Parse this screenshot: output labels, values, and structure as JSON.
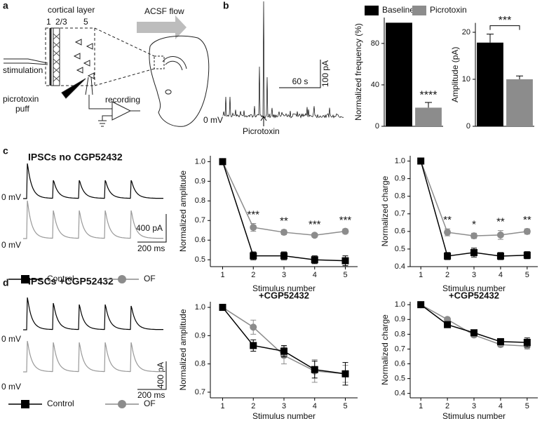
{
  "figure": {
    "panel_labels": [
      "a",
      "b",
      "c",
      "d"
    ],
    "a": {
      "cortical_layer": "cortical layer",
      "layers": [
        "1",
        "2/3",
        "5"
      ],
      "flow": "ACSF flow",
      "stimulation": "stimulation",
      "puff": [
        "picrotoxin",
        "puff"
      ],
      "recording": "recording"
    },
    "b": {
      "zero": "0 mV",
      "drug": "Picrotoxin",
      "scale_x": "60 s",
      "scale_y": "100 pA"
    },
    "c": {
      "title": "IPSCs no CGP52432",
      "zero": [
        "0 mV",
        "0 mV"
      ],
      "scale_y": "400 pA",
      "scale_x": "200 ms"
    },
    "d": {
      "title": "IPSCs +CGP52432",
      "zero": [
        "0 mV",
        "0 mV"
      ],
      "scale_y": "400 pA",
      "scale_x": "200 ms"
    }
  },
  "chart_data": [
    {
      "type": "bar",
      "y_label": "Normalized frequency (%)",
      "series": [
        {
          "name": "Baseline",
          "color": "#000000",
          "values": [
            100
          ]
        },
        {
          "name": "Picrotoxin",
          "color": "#8c8c8c",
          "values": [
            18
          ],
          "errors": [
            5
          ]
        }
      ],
      "ylim": [
        0,
        105
      ],
      "yticks": [
        0,
        40,
        80
      ],
      "significance": "****"
    },
    {
      "type": "bar",
      "y_label": "Amplitude (pA)",
      "series": [
        {
          "color": "#000000",
          "values": [
            17.8
          ],
          "errors": [
            1.8
          ]
        },
        {
          "color": "#8c8c8c",
          "values": [
            10
          ],
          "errors": [
            0.7
          ]
        }
      ],
      "ylim": [
        0,
        22
      ],
      "yticks": [
        0,
        10,
        20
      ],
      "significance": "***"
    },
    {
      "type": "line",
      "y_label": "Normalized amplitude",
      "x_label": "Stimulus number",
      "x": [
        1,
        2,
        3,
        4,
        5
      ],
      "xlim": [
        0.6,
        5.4
      ],
      "xticks": [
        1,
        2,
        3,
        4,
        5
      ],
      "ylim": [
        0.465,
        1.03
      ],
      "yticks": [
        0.5,
        0.6,
        0.7,
        0.8,
        0.9,
        {
          "value": 1,
          "label": "1.0"
        }
      ],
      "series": [
        {
          "name": "Control",
          "color": "#000000",
          "marker": "square",
          "values": [
            1,
            0.52,
            0.52,
            0.5,
            0.495
          ],
          "errors": [
            0,
            0.02,
            0.02,
            0.02,
            0.025
          ]
        },
        {
          "name": "OF",
          "color": "#8c8c8c",
          "marker": "circle",
          "values": [
            1,
            0.665,
            0.64,
            0.625,
            0.645
          ],
          "errors": [
            0,
            0.02,
            0.012,
            0.01,
            0.012
          ]
        }
      ],
      "significance": [
        null,
        "***",
        "**",
        "***",
        "***"
      ]
    },
    {
      "type": "line",
      "y_label": "Normalized charge",
      "x_label": "Stimulus number",
      "x": [
        1,
        2,
        3,
        4,
        5
      ],
      "xlim": [
        0.6,
        5.4
      ],
      "xticks": [
        1,
        2,
        3,
        4,
        5
      ],
      "ylim": [
        0.4,
        1.03
      ],
      "yticks": [
        0.4,
        0.5,
        0.6,
        0.7,
        0.8,
        0.9,
        {
          "value": 1,
          "label": "1.0"
        }
      ],
      "series": [
        {
          "color": "#000000",
          "marker": "square",
          "values": [
            1,
            0.46,
            0.48,
            0.46,
            0.465
          ],
          "errors": [
            0,
            0.02,
            0.025,
            0.02,
            0.02
          ]
        },
        {
          "color": "#8c8c8c",
          "marker": "circle",
          "values": [
            1,
            0.595,
            0.575,
            0.58,
            0.6
          ],
          "errors": [
            0,
            0.02,
            0.015,
            0.025,
            0.015
          ]
        }
      ],
      "significance": [
        null,
        "**",
        "*",
        "**",
        "**"
      ]
    },
    {
      "type": "line",
      "title": "+CGP52432",
      "y_label": "Normalized amplitude",
      "x_label": "Stimulus number",
      "x": [
        1,
        2,
        3,
        4,
        5
      ],
      "xlim": [
        0.6,
        5.4
      ],
      "xticks": [
        1,
        2,
        3,
        4,
        5
      ],
      "ylim": [
        0.68,
        1.02
      ],
      "yticks": [
        0.7,
        0.8,
        0.9,
        {
          "value": 1,
          "label": "1.0"
        }
      ],
      "series": [
        {
          "name": "Control",
          "color": "#000000",
          "marker": "square",
          "values": [
            1,
            0.865,
            0.845,
            0.78,
            0.765
          ],
          "errors": [
            0,
            0.02,
            0.02,
            0.03,
            0.04
          ]
        },
        {
          "name": "OF",
          "color": "#8c8c8c",
          "marker": "circle",
          "values": [
            1,
            0.93,
            0.83,
            0.775,
            0.765
          ],
          "errors": [
            0,
            0.025,
            0.03,
            0.04,
            0.03
          ]
        }
      ]
    },
    {
      "type": "line",
      "title": "+CGP52432",
      "y_label": "Normalized charge",
      "x_label": "Stimulus number",
      "x": [
        1,
        2,
        3,
        4,
        5
      ],
      "xlim": [
        0.6,
        5.4
      ],
      "xticks": [
        1,
        2,
        3,
        4,
        5
      ],
      "ylim": [
        0.37,
        1.02
      ],
      "yticks": [
        0.4,
        0.5,
        0.6,
        0.7,
        0.8,
        0.9,
        {
          "value": 1,
          "label": "1.0"
        }
      ],
      "series": [
        {
          "color": "#000000",
          "marker": "square",
          "values": [
            1,
            0.865,
            0.81,
            0.75,
            0.745
          ],
          "errors": [
            0,
            0.01,
            0.02,
            0.02,
            0.03
          ]
        },
        {
          "color": "#8c8c8c",
          "marker": "circle",
          "values": [
            1,
            0.9,
            0.795,
            0.73,
            0.72
          ],
          "errors": [
            0,
            0.015,
            0.015,
            0.015,
            0.02
          ]
        }
      ]
    }
  ]
}
